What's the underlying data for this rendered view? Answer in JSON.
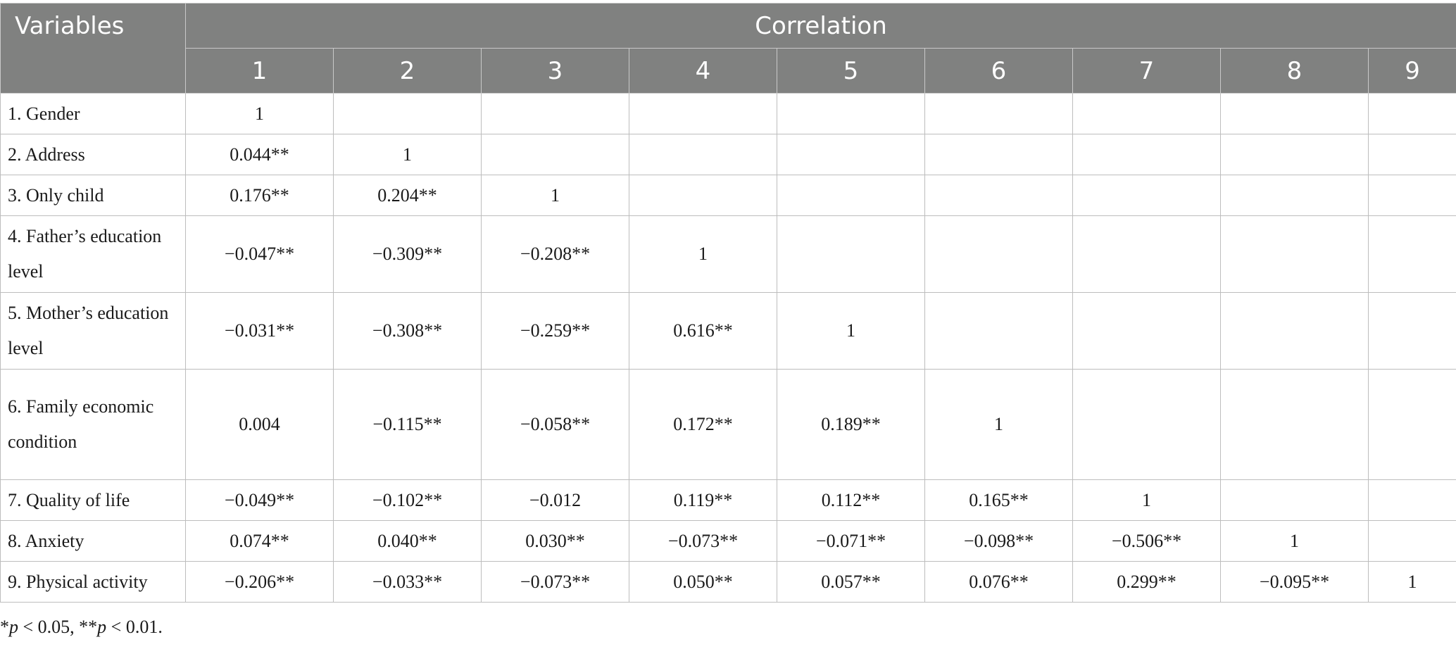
{
  "header": {
    "variables_label": "Variables",
    "correlation_label": "Correlation",
    "columns": [
      "1",
      "2",
      "3",
      "4",
      "5",
      "6",
      "7",
      "8",
      "9"
    ]
  },
  "rows": [
    {
      "label": "1. Gender",
      "cells": [
        "1",
        "",
        "",
        "",
        "",
        "",
        "",
        "",
        ""
      ]
    },
    {
      "label": "2. Address",
      "cells": [
        "0.044**",
        "1",
        "",
        "",
        "",
        "",
        "",
        "",
        ""
      ]
    },
    {
      "label": "3. Only child",
      "cells": [
        "0.176**",
        "0.204**",
        "1",
        "",
        "",
        "",
        "",
        "",
        ""
      ]
    },
    {
      "label": "4. Father’s education level",
      "cells": [
        "−0.047**",
        "−0.309**",
        "−0.208**",
        "1",
        "",
        "",
        "",
        "",
        ""
      ]
    },
    {
      "label": "5. Mother’s education level",
      "cells": [
        "−0.031**",
        "−0.308**",
        "−0.259**",
        "0.616**",
        "1",
        "",
        "",
        "",
        ""
      ]
    },
    {
      "label": "6. Family economic condition",
      "cells": [
        "0.004",
        "−0.115**",
        "−0.058**",
        "0.172**",
        "0.189**",
        "1",
        "",
        "",
        ""
      ]
    },
    {
      "label": "7. Quality of life",
      "cells": [
        "−0.049**",
        "−0.102**",
        "−0.012",
        "0.119**",
        "0.112**",
        "0.165**",
        "1",
        "",
        ""
      ]
    },
    {
      "label": "8. Anxiety",
      "cells": [
        "0.074**",
        "0.040**",
        "0.030**",
        "−0.073**",
        "−0.071**",
        "−0.098**",
        "−0.506**",
        "1",
        ""
      ]
    },
    {
      "label": "9. Physical activity",
      "cells": [
        "−0.206**",
        "−0.033**",
        "−0.073**",
        "0.050**",
        "0.057**",
        "0.076**",
        "0.299**",
        "−0.095**",
        "1"
      ]
    }
  ],
  "footnote": {
    "p1_symbol": "*",
    "p1_var": "p",
    "p1_text": " < 0.05, ",
    "p2_symbol": "**",
    "p2_var": "p",
    "p2_text": " < 0.01."
  }
}
